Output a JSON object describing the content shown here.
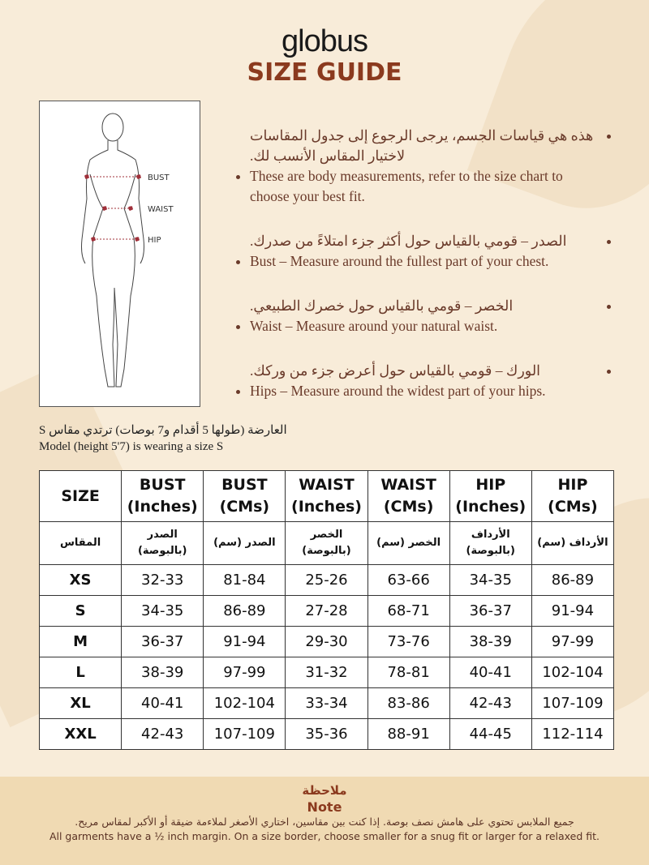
{
  "brand": "globus",
  "title": "SIZE GUIDE",
  "figure_labels": {
    "bust": "BUST",
    "waist": "WAIST",
    "hip": "HIP"
  },
  "bullets": [
    {
      "ar": "هذه هي قياسات الجسم، يرجى الرجوع إلى جدول المقاسات لاختيار المقاس الأنسب لك.",
      "en": "These are body measurements, refer to the size chart to choose your best fit."
    },
    {
      "ar": "الصدر – قومي بالقياس حول أكثر جزء امتلاءً من صدرك.",
      "en": "Bust – Measure around the fullest part of your chest."
    },
    {
      "ar": "الخصر – قومي بالقياس حول خصرك الطبيعي.",
      "en": "Waist – Measure around your natural waist."
    },
    {
      "ar": "الورك – قومي بالقياس حول أعرض جزء من وركك.",
      "en": "Hips – Measure around the widest part of your hips."
    }
  ],
  "model": {
    "ar": "العارضة (طولها 5 أقدام و7 بوصات) ترتدي مقاس S",
    "en": "Model (height 5'7) is wearing a size S"
  },
  "table": {
    "headers": [
      [
        "SIZE",
        ""
      ],
      [
        "BUST",
        "(Inches)"
      ],
      [
        "BUST",
        "(CMs)"
      ],
      [
        "WAIST",
        "(Inches)"
      ],
      [
        "WAIST",
        "(CMs)"
      ],
      [
        "HIP",
        "(Inches)"
      ],
      [
        "HIP",
        "(CMs)"
      ]
    ],
    "headers_ar": [
      "المقاس",
      "الصدر (بالبوصة)",
      "الصدر (سم)",
      "الخصر (بالبوصة)",
      "الخصر (سم)",
      "الأرداف (بالبوصة)",
      "الأرداف (سم)"
    ],
    "rows": [
      [
        "XS",
        "32-33",
        "81-84",
        "25-26",
        "63-66",
        "34-35",
        "86-89"
      ],
      [
        "S",
        "34-35",
        "86-89",
        "27-28",
        "68-71",
        "36-37",
        "91-94"
      ],
      [
        "M",
        "36-37",
        "91-94",
        "29-30",
        "73-76",
        "38-39",
        "97-99"
      ],
      [
        "L",
        "38-39",
        "97-99",
        "31-32",
        "78-81",
        "40-41",
        "102-104"
      ],
      [
        "XL",
        "40-41",
        "102-104",
        "33-34",
        "83-86",
        "42-43",
        "107-109"
      ],
      [
        "XXL",
        "42-43",
        "107-109",
        "35-36",
        "88-91",
        "44-45",
        "112-114"
      ]
    ]
  },
  "note": {
    "title_ar": "ملاحظة",
    "title_en": "Note",
    "text_ar": "جميع الملابس تحتوي على هامش نصف بوصة. إذا كنت بين مقاسين، اختاري الأصغر لملاءمة ضيقة أو الأكبر لمقاس مريح.",
    "text_en": "All garments have a ½ inch margin. On a size border, choose smaller for a snug fit or larger for a relaxed fit."
  },
  "colors": {
    "accent": "#8b3a1e",
    "background": "#f8ecd9",
    "note_bg": "#f0dab3",
    "measure_line": "#a0303a"
  }
}
